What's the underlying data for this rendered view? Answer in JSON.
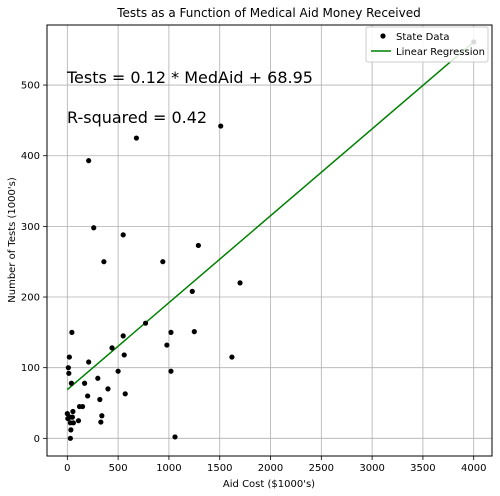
{
  "chart_data": {
    "type": "scatter",
    "title": "Tests as a Function of Medical Aid Money Received",
    "xlabel": "Aid Cost ($1000's)",
    "ylabel": "Number of Tests (1000's)",
    "xlim": [
      -200,
      4180
    ],
    "ylim": [
      -25,
      585
    ],
    "xticks": [
      0,
      500,
      1000,
      1500,
      2000,
      2500,
      3000,
      3500,
      4000
    ],
    "yticks": [
      0,
      100,
      200,
      300,
      400,
      500
    ],
    "grid": true,
    "legend_position": "top-right",
    "legend": [
      "State Data",
      "Linear Regression"
    ],
    "annotations": [
      "Tests = 0.12 * MedAid + 68.95",
      "R-squared = 0.42"
    ],
    "series": [
      {
        "name": "State Data",
        "kind": "scatter",
        "color": "#000000",
        "points": [
          [
            0,
            35
          ],
          [
            5,
            28
          ],
          [
            10,
            100
          ],
          [
            15,
            92
          ],
          [
            20,
            115
          ],
          [
            25,
            30
          ],
          [
            30,
            22
          ],
          [
            30,
            0
          ],
          [
            35,
            12
          ],
          [
            40,
            78
          ],
          [
            45,
            150
          ],
          [
            50,
            30
          ],
          [
            55,
            38
          ],
          [
            60,
            22
          ],
          [
            110,
            25
          ],
          [
            120,
            45
          ],
          [
            150,
            45
          ],
          [
            170,
            78
          ],
          [
            200,
            60
          ],
          [
            210,
            393
          ],
          [
            210,
            108
          ],
          [
            260,
            298
          ],
          [
            300,
            85
          ],
          [
            320,
            55
          ],
          [
            330,
            23
          ],
          [
            340,
            32
          ],
          [
            360,
            250
          ],
          [
            400,
            70
          ],
          [
            440,
            128
          ],
          [
            500,
            95
          ],
          [
            550,
            145
          ],
          [
            550,
            288
          ],
          [
            560,
            118
          ],
          [
            570,
            63
          ],
          [
            680,
            425
          ],
          [
            770,
            163
          ],
          [
            940,
            250
          ],
          [
            980,
            132
          ],
          [
            1020,
            95
          ],
          [
            1020,
            150
          ],
          [
            1060,
            2
          ],
          [
            1230,
            208
          ],
          [
            1250,
            151
          ],
          [
            1290,
            273
          ],
          [
            1510,
            442
          ],
          [
            1620,
            115
          ],
          [
            1700,
            220
          ],
          [
            4000,
            561
          ]
        ]
      },
      {
        "name": "Linear Regression",
        "kind": "line",
        "color": "#008000",
        "x": [
          0,
          4000
        ],
        "y": [
          68.95,
          561
        ]
      }
    ]
  }
}
